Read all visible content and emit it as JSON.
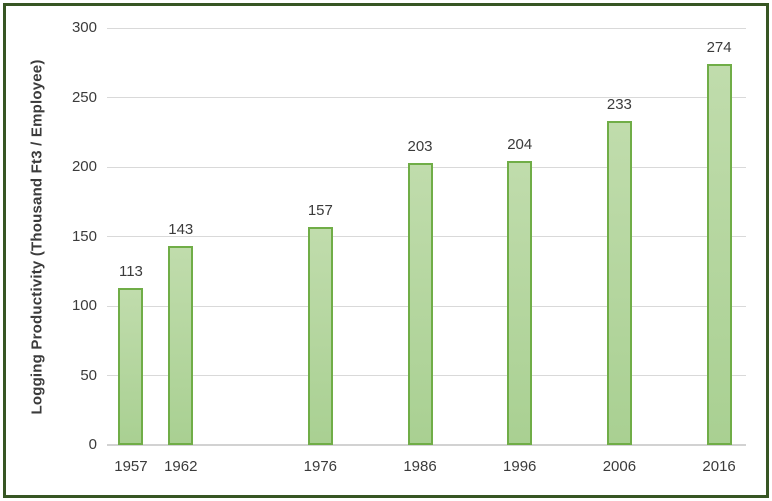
{
  "chart_data": {
    "type": "bar",
    "title": "",
    "xlabel": "",
    "ylabel": "Logging Productivity (Thousand  Ft3 / Employee)",
    "categories": [
      "1957",
      "1962",
      "1976",
      "1986",
      "1996",
      "2006",
      "2016"
    ],
    "x": [
      1957,
      1962,
      1976,
      1986,
      1996,
      2006,
      2016
    ],
    "values": [
      113,
      143,
      157,
      203,
      204,
      233,
      274
    ],
    "data_labels": [
      "113",
      "143",
      "157",
      "203",
      "204",
      "233",
      "274"
    ],
    "ylim": [
      0,
      300
    ],
    "yticks": [
      0,
      50,
      100,
      150,
      200,
      250,
      300
    ],
    "ytick_labels": [
      "0",
      "50",
      "100",
      "150",
      "200",
      "250",
      "300"
    ],
    "xlim": [
      1954.6,
      2018.7
    ],
    "grid": true,
    "legend": "none",
    "data_labels_shown": true,
    "colors": {
      "bar_fill_top": "#c0dcac",
      "bar_fill_bottom": "#a9d092",
      "bar_border": "#70ad47",
      "gridline": "#d9d9d9",
      "axis_line": "#d2d2d2",
      "frame_border": "#375623",
      "text": "#3b3b3b",
      "background": "#ffffff"
    }
  }
}
